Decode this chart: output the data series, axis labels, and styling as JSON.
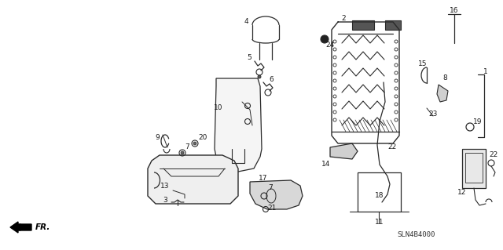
{
  "background_color": "#ffffff",
  "diagram_code": "SLN4B4000",
  "line_color": "#2a2a2a",
  "text_color": "#1a1a1a",
  "font_size": 6.5,
  "figsize": [
    6.4,
    3.19
  ],
  "dpi": 100
}
